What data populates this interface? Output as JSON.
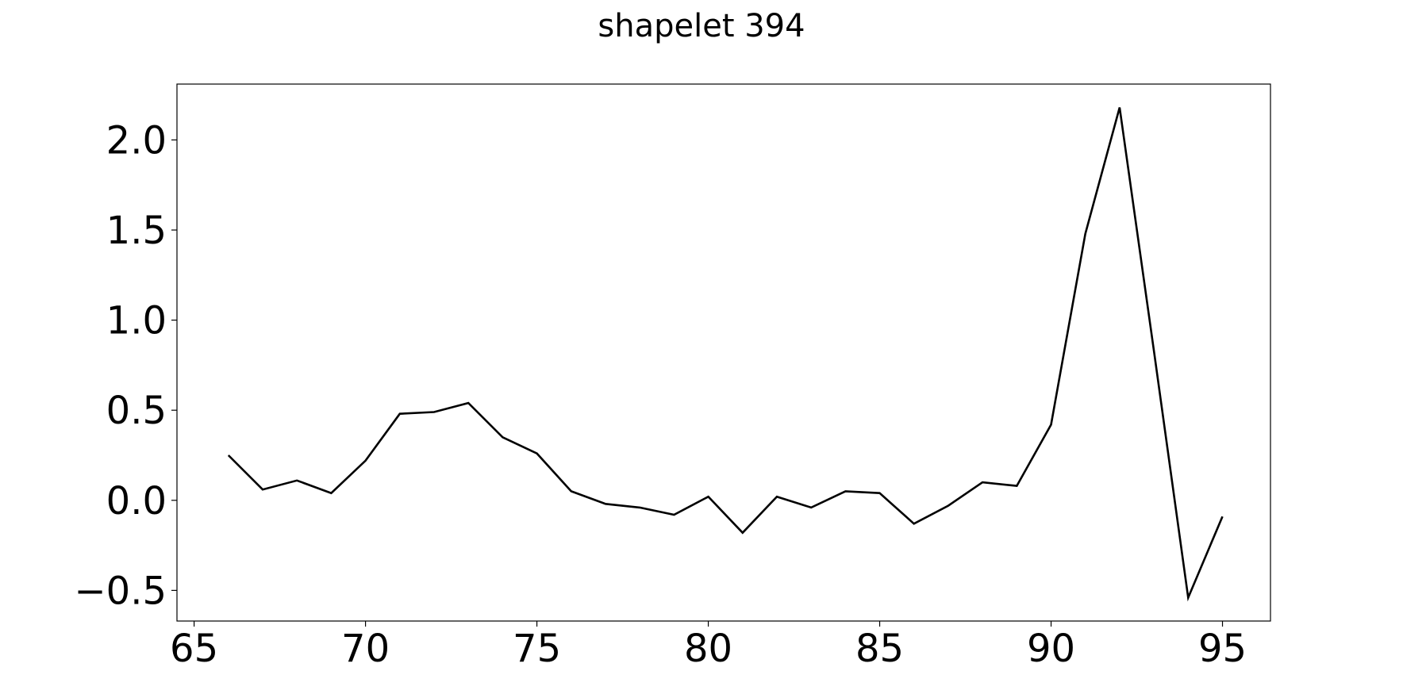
{
  "chart_data": {
    "type": "line",
    "title": "shapelet 394",
    "xlabel": "",
    "ylabel": "",
    "xlim": [
      64.5,
      96.4
    ],
    "ylim": [
      -0.67,
      2.31
    ],
    "xticks": [
      65,
      70,
      75,
      80,
      85,
      90,
      95
    ],
    "xtick_labels": [
      "65",
      "70",
      "75",
      "80",
      "85",
      "90",
      "95"
    ],
    "yticks": [
      -0.5,
      0.0,
      0.5,
      1.0,
      1.5,
      2.0
    ],
    "ytick_labels": [
      "−0.5",
      "0.0",
      "0.5",
      "1.0",
      "1.5",
      "2.0"
    ],
    "grid": false,
    "line_color": "#000000",
    "series": [
      {
        "x": [
          66,
          67,
          68,
          69,
          70,
          71,
          72,
          73,
          74,
          75,
          76,
          77,
          78,
          79,
          80,
          81,
          82,
          83,
          84,
          85,
          86,
          87,
          88,
          89,
          90,
          91,
          92,
          93,
          94,
          95
        ],
        "values": [
          0.25,
          0.06,
          0.11,
          0.04,
          0.22,
          0.48,
          0.49,
          0.54,
          0.35,
          0.26,
          0.05,
          -0.02,
          -0.04,
          -0.08,
          0.02,
          -0.18,
          0.02,
          -0.04,
          0.05,
          0.04,
          -0.13,
          -0.03,
          0.1,
          0.08,
          0.42,
          1.48,
          2.18,
          0.83,
          -0.54,
          -0.09
        ]
      }
    ]
  }
}
